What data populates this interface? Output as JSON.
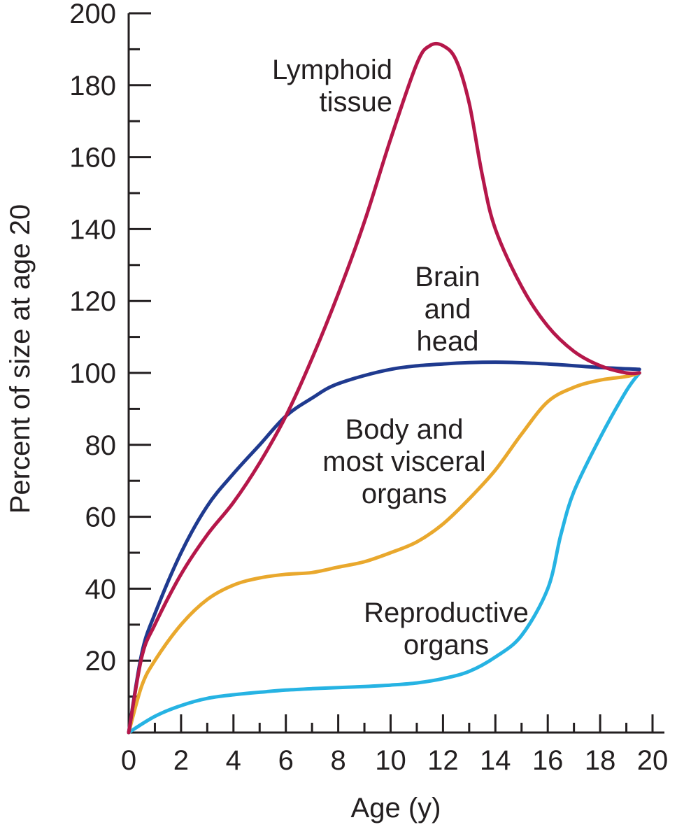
{
  "chart_data": {
    "type": "line",
    "xlabel": "Age (y)",
    "ylabel": "Percent of size at age 20",
    "xlim": [
      0,
      20
    ],
    "ylim": [
      0,
      200
    ],
    "x_ticks": [
      0,
      2,
      4,
      6,
      8,
      10,
      12,
      14,
      16,
      18,
      20
    ],
    "y_ticks": [
      20,
      40,
      60,
      80,
      100,
      120,
      140,
      160,
      180,
      200
    ],
    "grid": false,
    "legend": "none (series labelled directly on the plot)",
    "series": [
      {
        "name": "Lymphoid tissue",
        "label_lines": [
          "Lymphoid",
          "tissue"
        ],
        "color": "#b5174a",
        "x": [
          0,
          0.5,
          1,
          2,
          3,
          4,
          5,
          6,
          7,
          8,
          9,
          10,
          11,
          11.5,
          12,
          12.5,
          13,
          13.5,
          14,
          15,
          16,
          17,
          18,
          19,
          19.5
        ],
        "y": [
          0,
          21,
          30,
          44,
          55,
          64,
          75,
          88,
          104,
          122,
          142,
          165,
          186,
          191,
          191,
          187,
          175,
          155,
          140,
          124,
          113,
          106,
          102,
          100,
          100
        ]
      },
      {
        "name": "Brain and head",
        "label_lines": [
          "Brain",
          "and",
          "head"
        ],
        "color": "#1f3a8f",
        "x": [
          0,
          0.5,
          1,
          2,
          3,
          4,
          5,
          6,
          7,
          8,
          10,
          12,
          14,
          16,
          18,
          19.5
        ],
        "y": [
          0,
          22,
          33,
          50,
          63,
          72,
          80,
          88,
          93,
          97,
          101,
          102.5,
          103,
          102.5,
          101.5,
          101
        ]
      },
      {
        "name": "Body and most visceral organs",
        "label_lines": [
          "Body and",
          "most visceral",
          "organs"
        ],
        "color": "#e9a82d",
        "x": [
          0,
          0.5,
          1,
          2,
          3,
          4,
          5,
          6,
          7,
          8,
          9,
          10,
          11,
          12,
          13,
          14,
          15,
          16,
          17,
          18,
          19,
          19.5
        ],
        "y": [
          0,
          13,
          20,
          30,
          37,
          41,
          43,
          44,
          44.5,
          46,
          47.5,
          50,
          53,
          58,
          65,
          73,
          83,
          92,
          96,
          98,
          99,
          100
        ]
      },
      {
        "name": "Reproductive organs",
        "label_lines": [
          "Reproductive",
          "organs"
        ],
        "color": "#26b3e3",
        "x": [
          0,
          1,
          2,
          3,
          4,
          5,
          6,
          7,
          8,
          9,
          10,
          11,
          12,
          13,
          14,
          15,
          16,
          16.5,
          17,
          18,
          19,
          19.5
        ],
        "y": [
          0,
          4.5,
          7.5,
          9.5,
          10.5,
          11.2,
          11.8,
          12.2,
          12.5,
          12.8,
          13.2,
          13.8,
          15,
          17,
          21,
          27,
          40,
          55,
          67,
          82,
          95,
          100
        ]
      }
    ]
  }
}
